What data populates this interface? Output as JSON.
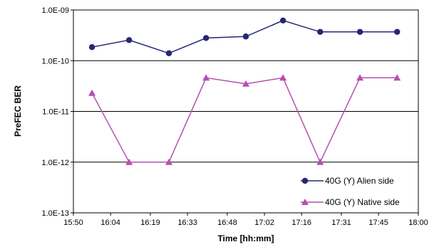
{
  "chart_data": {
    "type": "line",
    "title": "",
    "xlabel": "Time [hh:mm]",
    "ylabel": "PreFEC BER",
    "y_scale": "log",
    "ylim": [
      1e-13,
      1e-09
    ],
    "y_ticks": [
      1e-13,
      1e-12,
      1e-11,
      1e-10,
      1e-09
    ],
    "y_tick_labels": [
      "1.0E-13",
      "1.0E-12",
      "1.0E-11",
      "1.0E-10",
      "1.0E-09"
    ],
    "xlim": [
      "15:50",
      "18:00"
    ],
    "x_ticks": [
      "15:50",
      "16:04",
      "16:19",
      "16:33",
      "16:48",
      "17:02",
      "17:16",
      "17:31",
      "17:45",
      "18:00"
    ],
    "grid": "horizontal",
    "legend_position": "bottom-right",
    "series": [
      {
        "name": "40G (Y) Alien side",
        "color": "#262672",
        "marker": "circle",
        "x": [
          "15:57",
          "16:11",
          "16:26",
          "16:40",
          "16:55",
          "17:09",
          "17:23",
          "17:38",
          "17:52"
        ],
        "y": [
          1.85e-10,
          2.55e-10,
          1.4e-10,
          2.8e-10,
          3e-10,
          6.2e-10,
          3.7e-10,
          3.7e-10,
          3.7e-10
        ]
      },
      {
        "name": "40G (Y) Native side",
        "color": "#b54fb0",
        "marker": "triangle",
        "x": [
          "15:57",
          "16:11",
          "16:26",
          "16:40",
          "16:55",
          "17:09",
          "17:23",
          "17:38",
          "17:52"
        ],
        "y": [
          2.3e-11,
          1e-12,
          1e-12,
          4.6e-11,
          3.5e-11,
          4.6e-11,
          1e-12,
          4.6e-11,
          4.6e-11
        ]
      }
    ]
  }
}
